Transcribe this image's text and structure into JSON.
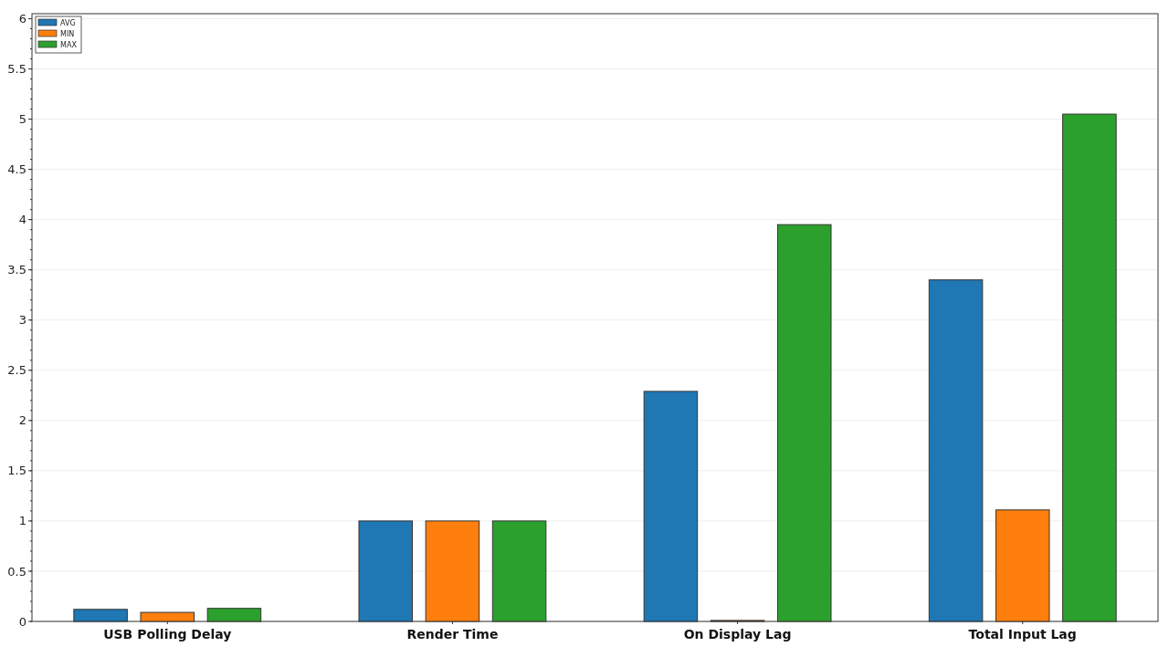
{
  "chart_data": {
    "type": "bar",
    "categories": [
      "USB Polling Delay",
      "Render Time",
      "On Display Lag",
      "Total Input Lag"
    ],
    "series": [
      {
        "name": "AVG",
        "color": "#1f77b4",
        "values": [
          0.12,
          1.0,
          2.29,
          3.4
        ]
      },
      {
        "name": "MIN",
        "color": "#ff7f0e",
        "values": [
          0.09,
          1.0,
          0.01,
          1.11
        ]
      },
      {
        "name": "MAX",
        "color": "#2ca02c",
        "values": [
          0.13,
          1.0,
          3.95,
          5.05
        ]
      }
    ],
    "ylim": [
      0,
      6.05
    ],
    "yticks": [
      0,
      0.5,
      1,
      1.5,
      2,
      2.5,
      3,
      3.5,
      4,
      4.5,
      5,
      5.5,
      6
    ],
    "grid": "y",
    "legend": "top left"
  }
}
